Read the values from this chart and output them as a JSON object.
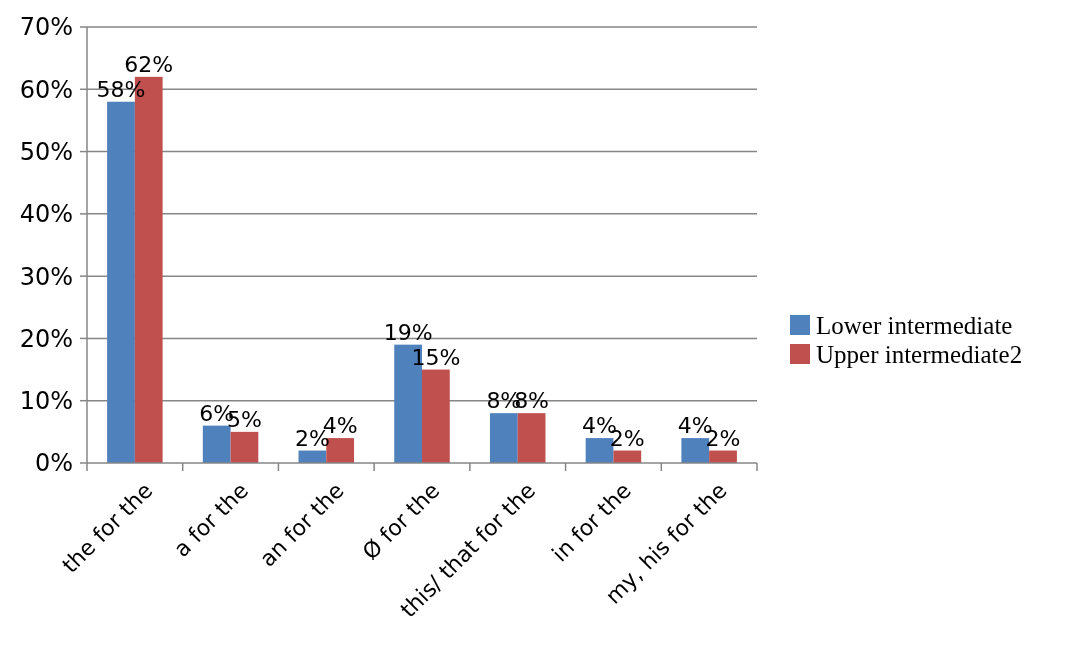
{
  "chart_data": {
    "type": "bar",
    "categories": [
      "the for the",
      "a for the",
      "an for the",
      "Ø for the",
      "this/ that for the",
      "in for the",
      "my, his for the"
    ],
    "series": [
      {
        "name": "Lower intermediate",
        "color": "#4f81bd",
        "values": [
          58,
          6,
          2,
          19,
          8,
          4,
          4
        ],
        "value_labels": [
          "58%",
          "6%",
          "2%",
          "19%",
          "8%",
          "4%",
          "4%"
        ]
      },
      {
        "name": "Upper intermediate2",
        "color": "#c0504d",
        "values": [
          62,
          5,
          4,
          15,
          8,
          2,
          2
        ],
        "value_labels": [
          "62%",
          "5%",
          "4%",
          "15%",
          "8%",
          "2%",
          "2%"
        ]
      }
    ],
    "ylim": [
      0,
      70
    ],
    "yticks": [
      {
        "value": 0,
        "label": "0%"
      },
      {
        "value": 10,
        "label": "10%"
      },
      {
        "value": 20,
        "label": "20%"
      },
      {
        "value": 30,
        "label": "30%"
      },
      {
        "value": 40,
        "label": "40%"
      },
      {
        "value": 50,
        "label": "50%"
      },
      {
        "value": 60,
        "label": "60%"
      },
      {
        "value": 70,
        "label": "70%"
      }
    ],
    "grid": "y",
    "legend": "right"
  }
}
